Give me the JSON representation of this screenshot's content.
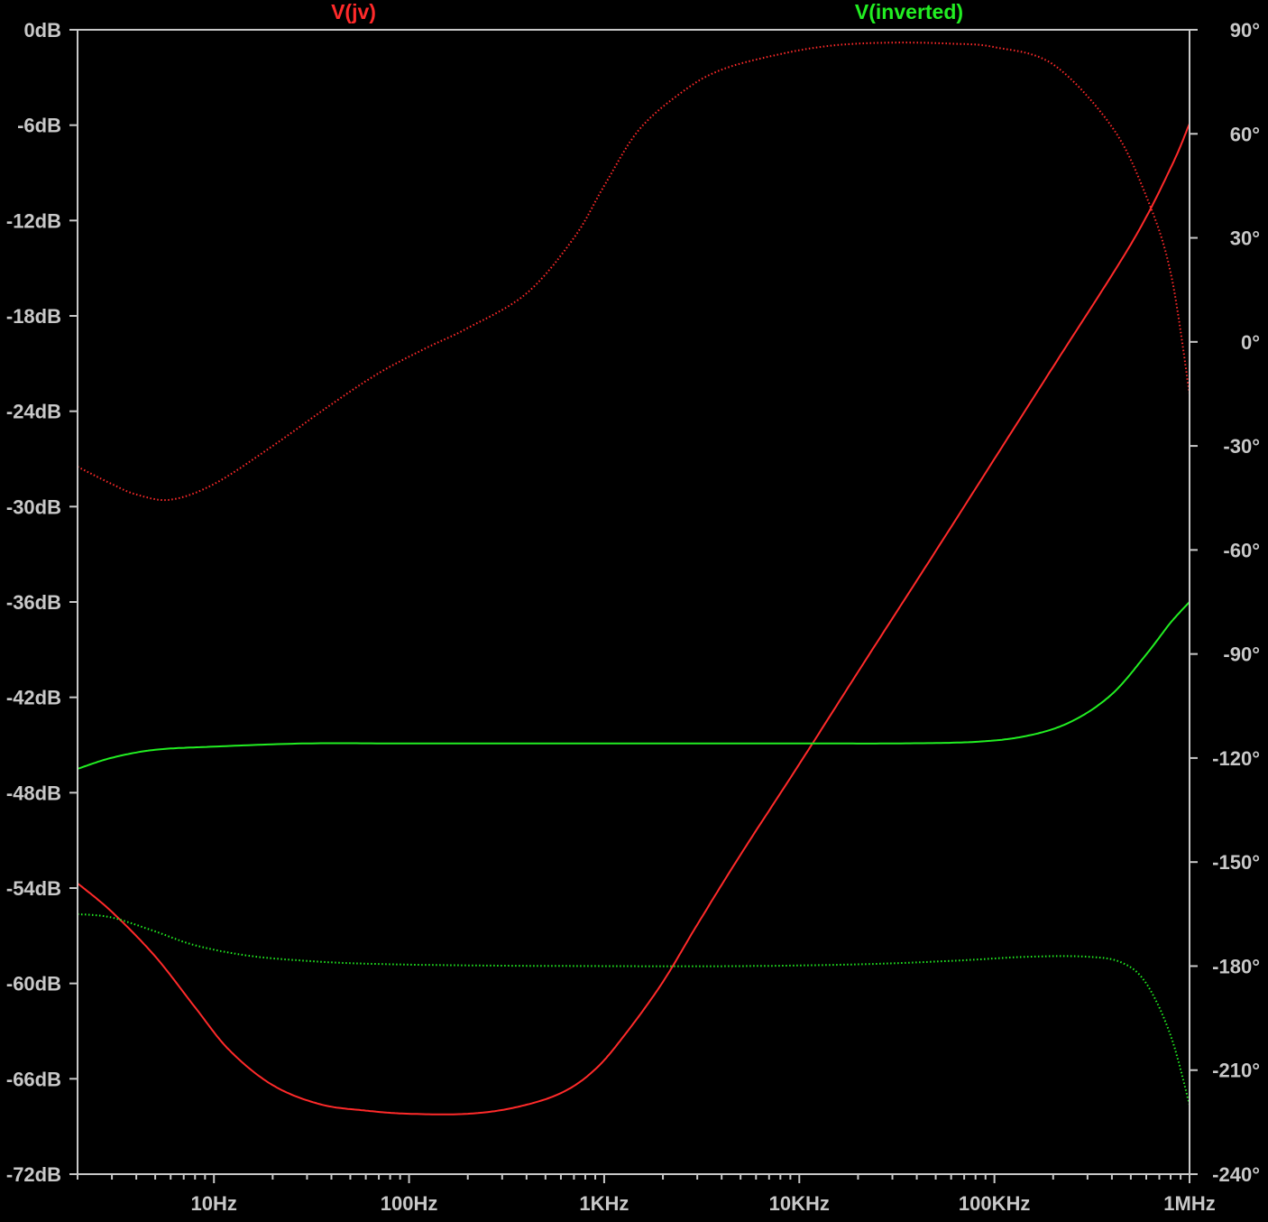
{
  "chart_data": {
    "type": "line",
    "title": "",
    "background": "#000000",
    "axis_color": "#c8c8c8",
    "x_axis": {
      "scale": "log",
      "range_hz": [
        2,
        1000000
      ],
      "ticks": [
        {
          "value": 10,
          "label": "10Hz"
        },
        {
          "value": 100,
          "label": "100Hz"
        },
        {
          "value": 1000,
          "label": "1KHz"
        },
        {
          "value": 10000,
          "label": "10KHz"
        },
        {
          "value": 100000,
          "label": "100KHz"
        },
        {
          "value": 1000000,
          "label": "1MHz"
        }
      ]
    },
    "y_left": {
      "unit": "dB",
      "range": [
        -72,
        0
      ],
      "ticks": [
        {
          "value": 0,
          "label": "0dB"
        },
        {
          "value": -6,
          "label": "-6dB"
        },
        {
          "value": -12,
          "label": "-12dB"
        },
        {
          "value": -18,
          "label": "-18dB"
        },
        {
          "value": -24,
          "label": "-24dB"
        },
        {
          "value": -30,
          "label": "-30dB"
        },
        {
          "value": -36,
          "label": "-36dB"
        },
        {
          "value": -42,
          "label": "-42dB"
        },
        {
          "value": -48,
          "label": "-48dB"
        },
        {
          "value": -54,
          "label": "-54dB"
        },
        {
          "value": -60,
          "label": "-60dB"
        },
        {
          "value": -66,
          "label": "-66dB"
        },
        {
          "value": -72,
          "label": "-72dB"
        }
      ]
    },
    "y_right": {
      "unit": "degrees",
      "range": [
        -240,
        90
      ],
      "ticks": [
        {
          "value": 90,
          "label": "90°"
        },
        {
          "value": 60,
          "label": "60°"
        },
        {
          "value": 30,
          "label": "30°"
        },
        {
          "value": 0,
          "label": "0°"
        },
        {
          "value": -30,
          "label": "-30°"
        },
        {
          "value": -60,
          "label": "-60°"
        },
        {
          "value": -90,
          "label": "-90°"
        },
        {
          "value": -120,
          "label": "-120°"
        },
        {
          "value": -150,
          "label": "-150°"
        },
        {
          "value": -180,
          "label": "-180°"
        },
        {
          "value": -210,
          "label": "-210°"
        },
        {
          "value": -240,
          "label": "-240°"
        }
      ]
    },
    "series": [
      {
        "name": "V(jv)",
        "color": "#ff2a2a",
        "magnitude_db": [
          [
            2,
            -53.7
          ],
          [
            3,
            -55.5
          ],
          [
            5,
            -58.3
          ],
          [
            8,
            -61.5
          ],
          [
            12,
            -64.2
          ],
          [
            20,
            -66.4
          ],
          [
            35,
            -67.6
          ],
          [
            60,
            -68.0
          ],
          [
            100,
            -68.2
          ],
          [
            200,
            -68.2
          ],
          [
            350,
            -67.8
          ],
          [
            600,
            -66.9
          ],
          [
            900,
            -65.4
          ],
          [
            1300,
            -63.1
          ],
          [
            2000,
            -59.9
          ],
          [
            3000,
            -56.3
          ],
          [
            5000,
            -51.9
          ],
          [
            10000,
            -46.2
          ],
          [
            20000,
            -40.4
          ],
          [
            50000,
            -32.8
          ],
          [
            100000,
            -27.0
          ],
          [
            200000,
            -21.2
          ],
          [
            500000,
            -13.5
          ],
          [
            800000,
            -8.7
          ],
          [
            1000000,
            -5.9
          ]
        ],
        "phase_deg": [
          [
            2,
            -36
          ],
          [
            3,
            -41
          ],
          [
            4,
            -44
          ],
          [
            6,
            -45.5
          ],
          [
            10,
            -41
          ],
          [
            20,
            -30
          ],
          [
            40,
            -18
          ],
          [
            70,
            -9
          ],
          [
            120,
            -2
          ],
          [
            200,
            4
          ],
          [
            400,
            14
          ],
          [
            700,
            30
          ],
          [
            1000,
            45
          ],
          [
            1500,
            61
          ],
          [
            2500,
            72
          ],
          [
            4000,
            78.5
          ],
          [
            8000,
            83
          ],
          [
            15000,
            85.5
          ],
          [
            30000,
            86.3
          ],
          [
            60000,
            86
          ],
          [
            100000,
            85
          ],
          [
            200000,
            80
          ],
          [
            400000,
            62
          ],
          [
            600000,
            42
          ],
          [
            800000,
            20
          ],
          [
            1000000,
            -15
          ]
        ]
      },
      {
        "name": "V(inverted)",
        "color": "#22ee22",
        "magnitude_db": [
          [
            2,
            -46.5
          ],
          [
            3,
            -45.8
          ],
          [
            5,
            -45.3
          ],
          [
            10,
            -45.1
          ],
          [
            30,
            -44.9
          ],
          [
            100,
            -44.9
          ],
          [
            1000,
            -44.9
          ],
          [
            10000,
            -44.9
          ],
          [
            30000,
            -44.9
          ],
          [
            80000,
            -44.8
          ],
          [
            150000,
            -44.4
          ],
          [
            250000,
            -43.5
          ],
          [
            400000,
            -41.8
          ],
          [
            600000,
            -39.3
          ],
          [
            800000,
            -37.3
          ],
          [
            1000000,
            -36.0
          ]
        ]
      },
      {
        "name": "V(inverted)",
        "color": "#22ee22",
        "phase_deg": [
          [
            2,
            -165
          ],
          [
            3,
            -166
          ],
          [
            5,
            -170
          ],
          [
            8,
            -174
          ],
          [
            15,
            -177
          ],
          [
            30,
            -178.5
          ],
          [
            60,
            -179.3
          ],
          [
            200,
            -179.8
          ],
          [
            1000,
            -180
          ],
          [
            5000,
            -180
          ],
          [
            20000,
            -179.5
          ],
          [
            60000,
            -178.5
          ],
          [
            150000,
            -177.3
          ],
          [
            300000,
            -177.3
          ],
          [
            450000,
            -179
          ],
          [
            600000,
            -185
          ],
          [
            800000,
            -200
          ],
          [
            1000000,
            -220
          ]
        ]
      }
    ]
  }
}
